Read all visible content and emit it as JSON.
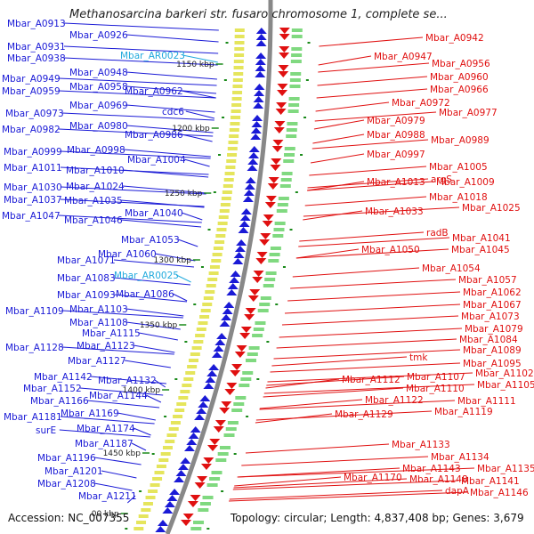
{
  "title": "Methanosarcina barkeri str. fusaro chromosome 1, complete se...",
  "footer": {
    "accession": "Accession: NC_007355",
    "stats": "Topology: circular; Length: 4,837,408 bp; Genes: 3,679"
  },
  "colors": {
    "reverse_strand": "#1a1ad6",
    "forward_strand": "#e01010",
    "rna": "#22aadd",
    "backbone": "#888888",
    "ticks": "#1a8a1a"
  },
  "scale_ticks": [
    "1150 kbp",
    "1200 kbp",
    "1250 kbp",
    "1300 kbp",
    "1350 kbp",
    "1400 kbp",
    "1450 kbp",
    "00 kbp"
  ],
  "left_labels": [
    "Mbar_A0913",
    "Mbar_A0926",
    "Mbar_A0931",
    "Mbar_A0938",
    "Mbar_AR0023",
    "Mbar_A0948",
    "Mbar_A0949",
    "Mbar_A0958",
    "Mbar_A0959",
    "Mbar_A0962",
    "Mbar_A0969",
    "Mbar_A0973",
    "cdc6",
    "Mbar_A0980",
    "Mbar_A0982",
    "Mbar_A0986",
    "Mbar_A0999",
    "Mbar_A0998",
    "Mbar_A1004",
    "Mbar_A1011",
    "Mbar_A1010",
    "Mbar_A1030",
    "Mbar_A1024",
    "Mbar_A1037",
    "Mbar_A1035",
    "Mbar_A1040",
    "Mbar_A1047",
    "Mbar_A1046",
    "Mbar_A1053",
    "Mbar_A1060",
    "Mbar_A1071",
    "Mbar_A1083",
    "Mbar_AR0025",
    "Mbar_A1093",
    "Mbar_A1086",
    "Mbar_A1109",
    "Mbar_A1103",
    "Mbar_A1108",
    "Mbar_A1115",
    "Mbar_A1128",
    "Mbar_A1123",
    "Mbar_A1127",
    "Mbar_A1142",
    "Mbar_A1132",
    "Mbar_A1152",
    "Mbar_A1144",
    "Mbar_A1166",
    "Mbar_A1169",
    "Mbar_A1181",
    "Mbar_A1174",
    "surE",
    "Mbar_A1187",
    "Mbar_A1196",
    "Mbar_A1201",
    "Mbar_A1208",
    "Mbar_A1211"
  ],
  "right_labels": [
    "Mbar_A0942",
    "Mbar_A0947",
    "Mbar_A0956",
    "Mbar_A0960",
    "Mbar_A0966",
    "Mbar_A0972",
    "Mbar_A0977",
    "Mbar_A0979",
    "Mbar_A0988",
    "Mbar_A0989",
    "Mbar_A0997",
    "Mbar_A1005",
    "Mbar_A1013",
    "argS",
    "Mbar_A1009",
    "Mbar_A1018",
    "Mbar_A1033",
    "Mbar_A1025",
    "radB",
    "Mbar_A1041",
    "Mbar_A1050",
    "Mbar_A1045",
    "Mbar_A1054",
    "Mbar_A1057",
    "Mbar_A1062",
    "Mbar_A1067",
    "Mbar_A1073",
    "Mbar_A1079",
    "Mbar_A1084",
    "tmk",
    "Mbar_A1089",
    "Mbar_A1095",
    "Mbar_A1102",
    "Mbar_A1112",
    "Mbar_A1107",
    "Mbar_A1105",
    "Mbar_A1110",
    "Mbar_A1111",
    "Mbar_A1122",
    "Mbar_A1119",
    "Mbar_A1129",
    "Mbar_A1133",
    "Mbar_A1134",
    "Mbar_A1143",
    "Mbar_A1135",
    "Mbar_A1170",
    "Mbar_A1148",
    "Mbar_A1141",
    "dapA",
    "Mbar_A1146"
  ]
}
